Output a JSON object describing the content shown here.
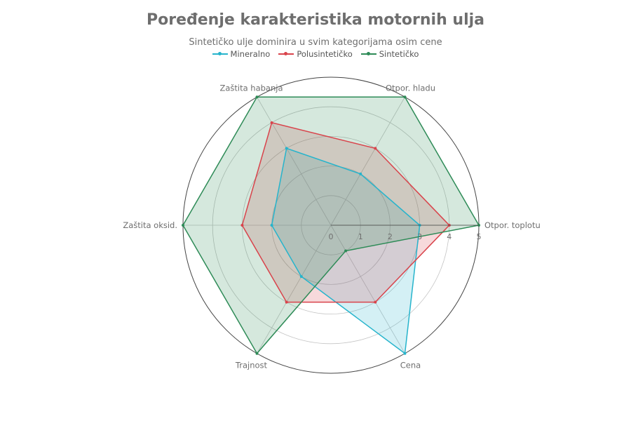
{
  "chart_data": {
    "type": "radar",
    "title": "Poređenje karakteristika motornih ulja",
    "subtitle": "Sintetičko ulje dominira u svim kategorijama osim cene",
    "axes": [
      "Otpor. toplotu",
      "Otpor. hladu",
      "Zaštita habanja",
      "Zaštita oksid.",
      "Trajnost",
      "Cena"
    ],
    "r_range": [
      0,
      5
    ],
    "r_ticks": [
      "0",
      "1",
      "2",
      "3",
      "4",
      "5"
    ],
    "legend_position": "top-center",
    "grid": true,
    "series": [
      {
        "name": "Mineralno",
        "color": "#26b4cc",
        "values": [
          3,
          2,
          3,
          2,
          2,
          5
        ]
      },
      {
        "name": "Polusintetičko",
        "color": "#d9434b",
        "values": [
          4,
          3,
          4,
          3,
          3,
          3
        ]
      },
      {
        "name": "Sintetičko",
        "color": "#2e8b57",
        "values": [
          5,
          5,
          5,
          5,
          5,
          1
        ]
      }
    ]
  }
}
